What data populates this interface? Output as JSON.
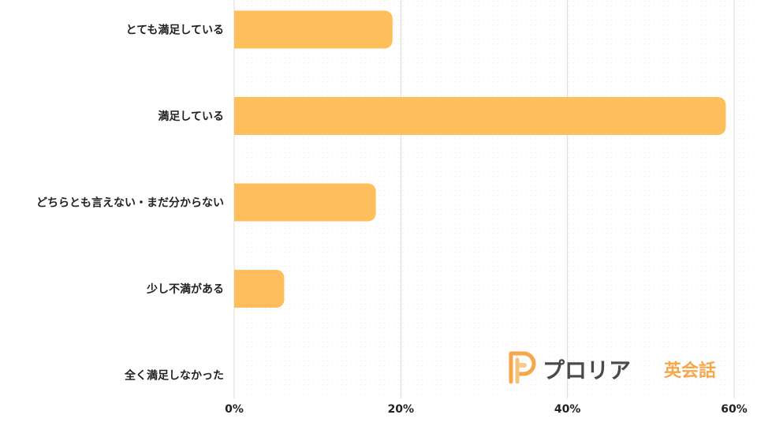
{
  "chart_data": {
    "type": "bar",
    "orientation": "horizontal",
    "categories": [
      "とても満足している",
      "満足している",
      "どちらとも言えない・まだ分からない",
      "少し不満がある",
      "全く満足しなかった"
    ],
    "values": [
      19,
      59,
      17,
      6,
      0
    ],
    "x_ticks": [
      "0%",
      "20%",
      "40%",
      "60%"
    ],
    "xlim": [
      0,
      60
    ],
    "grid": true,
    "bar_color": "#FFBE5C"
  },
  "logo": {
    "name": "プロリア",
    "sub": "英会話",
    "icon": "p-logo-icon",
    "colors": {
      "name": "#4a4a4a",
      "sub": "#F5A74A",
      "icon": "#F5A74A"
    }
  }
}
